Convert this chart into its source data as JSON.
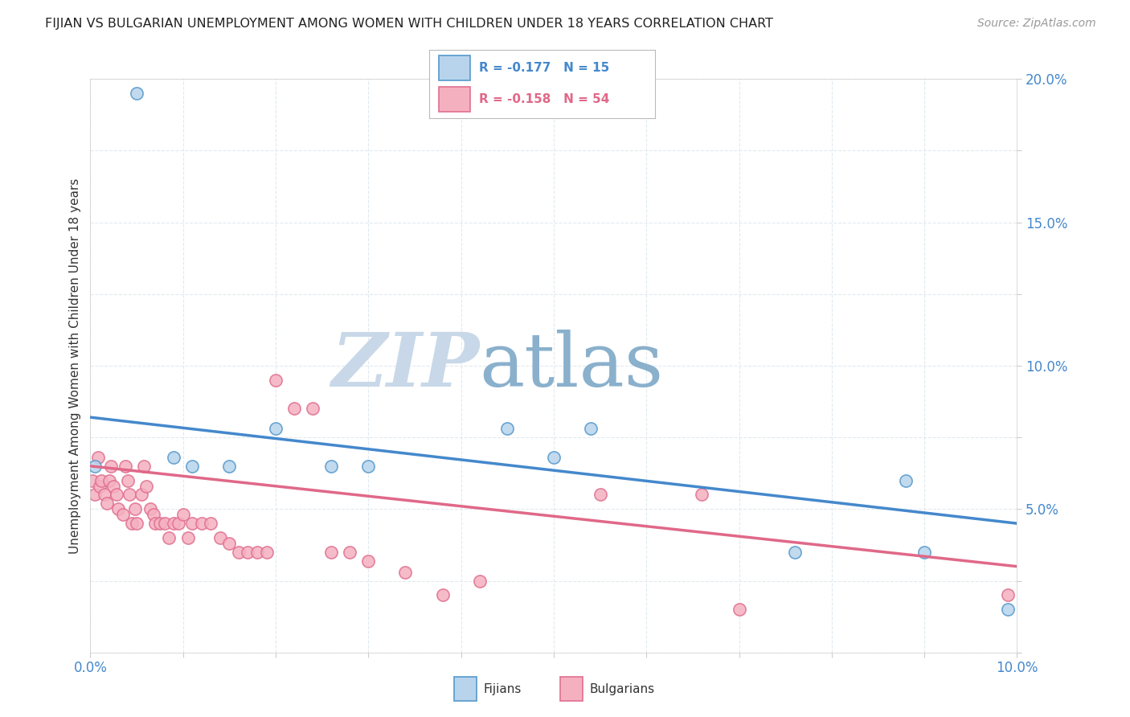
{
  "title": "FIJIAN VS BULGARIAN UNEMPLOYMENT AMONG WOMEN WITH CHILDREN UNDER 18 YEARS CORRELATION CHART",
  "source": "Source: ZipAtlas.com",
  "xlim": [
    0.0,
    10.0
  ],
  "ylim": [
    0.0,
    20.0
  ],
  "fijian_scatter_color": "#b8d4ec",
  "fijian_edge_color": "#5599cc",
  "bulgarian_scatter_color": "#f5b0c0",
  "bulgarian_edge_color": "#e07090",
  "fijian_line_color": "#4488cc",
  "bulgarian_line_color": "#e06888",
  "legend_text_fijian_color": "#4488cc",
  "legend_text_bulgarian_color": "#e06888",
  "legend_r_fijian": "R = -0.177",
  "legend_n_fijian": "N = 15",
  "legend_r_bulgarian": "R = -0.158",
  "legend_n_bulgarian": "N = 54",
  "watermark_zip": "ZIP",
  "watermark_atlas": "atlas",
  "watermark_color_zip": "#c8d8e8",
  "watermark_color_atlas": "#8ab0cc",
  "ylabel": "Unemployment Among Women with Children Under 18 years",
  "fijian_x": [
    0.05,
    0.5,
    0.9,
    1.1,
    1.5,
    2.0,
    2.6,
    3.0,
    4.5,
    5.0,
    5.4,
    7.6,
    8.8,
    9.0,
    9.9
  ],
  "fijian_y": [
    6.5,
    19.5,
    6.8,
    6.5,
    6.5,
    7.8,
    6.5,
    6.5,
    7.8,
    6.8,
    7.8,
    3.5,
    6.0,
    3.5,
    1.5
  ],
  "bulgarian_x": [
    0.02,
    0.05,
    0.08,
    0.1,
    0.12,
    0.15,
    0.18,
    0.2,
    0.22,
    0.25,
    0.28,
    0.3,
    0.35,
    0.38,
    0.4,
    0.42,
    0.45,
    0.48,
    0.5,
    0.55,
    0.58,
    0.6,
    0.65,
    0.68,
    0.7,
    0.75,
    0.8,
    0.85,
    0.9,
    0.95,
    1.0,
    1.05,
    1.1,
    1.2,
    1.3,
    1.4,
    1.5,
    1.6,
    1.7,
    1.8,
    1.9,
    2.0,
    2.2,
    2.4,
    2.6,
    2.8,
    3.0,
    3.4,
    3.8,
    4.2,
    5.5,
    6.6,
    7.0,
    9.9
  ],
  "bulgarian_y": [
    6.0,
    5.5,
    6.8,
    5.8,
    6.0,
    5.5,
    5.2,
    6.0,
    6.5,
    5.8,
    5.5,
    5.0,
    4.8,
    6.5,
    6.0,
    5.5,
    4.5,
    5.0,
    4.5,
    5.5,
    6.5,
    5.8,
    5.0,
    4.8,
    4.5,
    4.5,
    4.5,
    4.0,
    4.5,
    4.5,
    4.8,
    4.0,
    4.5,
    4.5,
    4.5,
    4.0,
    3.8,
    3.5,
    3.5,
    3.5,
    3.5,
    9.5,
    8.5,
    8.5,
    3.5,
    3.5,
    3.2,
    2.8,
    2.0,
    2.5,
    5.5,
    5.5,
    1.5,
    2.0
  ],
  "fijian_trendline_x": [
    0.0,
    10.0
  ],
  "fijian_trendline_y": [
    8.2,
    4.5
  ],
  "bulgarian_trendline_x": [
    0.0,
    10.0
  ],
  "bulgarian_trendline_y": [
    6.5,
    3.0
  ],
  "background_color": "#ffffff",
  "grid_color": "#dde8ee",
  "title_color": "#222222",
  "source_color": "#999999",
  "tick_color": "#4488cc",
  "axis_label_color": "#333333"
}
